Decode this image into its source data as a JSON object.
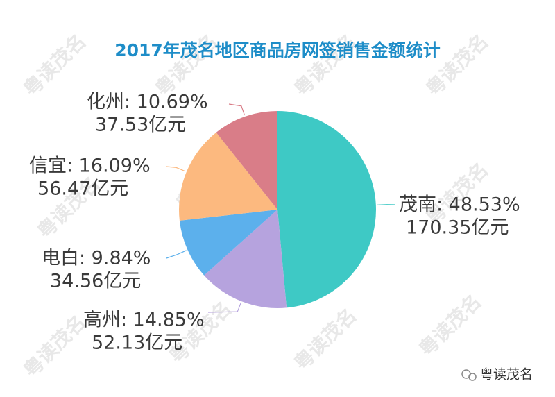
{
  "chart_data": {
    "type": "pie",
    "title": "2017年茂名地区商品房网签销售金额统计",
    "categories": [
      "茂南",
      "高州",
      "电白",
      "信宜",
      "化州"
    ],
    "values": [
      48.53,
      14.85,
      9.84,
      16.09,
      10.69
    ],
    "value_labels": [
      "茂南: 48.53%",
      "高州: 14.85%",
      "电白: 9.84%",
      "信宜: 16.09%",
      "化州: 10.69%"
    ],
    "amounts": [
      170.35,
      52.13,
      34.56,
      56.47,
      37.53
    ],
    "amount_labels": [
      "170.35亿元",
      "52.13亿元",
      "34.56亿元",
      "56.47亿元",
      "37.53亿元"
    ],
    "colors": [
      "#3ec9c5",
      "#b6a3de",
      "#5cb0ec",
      "#fcb97f",
      "#d97d88"
    ],
    "watermark": "粤读茂名"
  }
}
